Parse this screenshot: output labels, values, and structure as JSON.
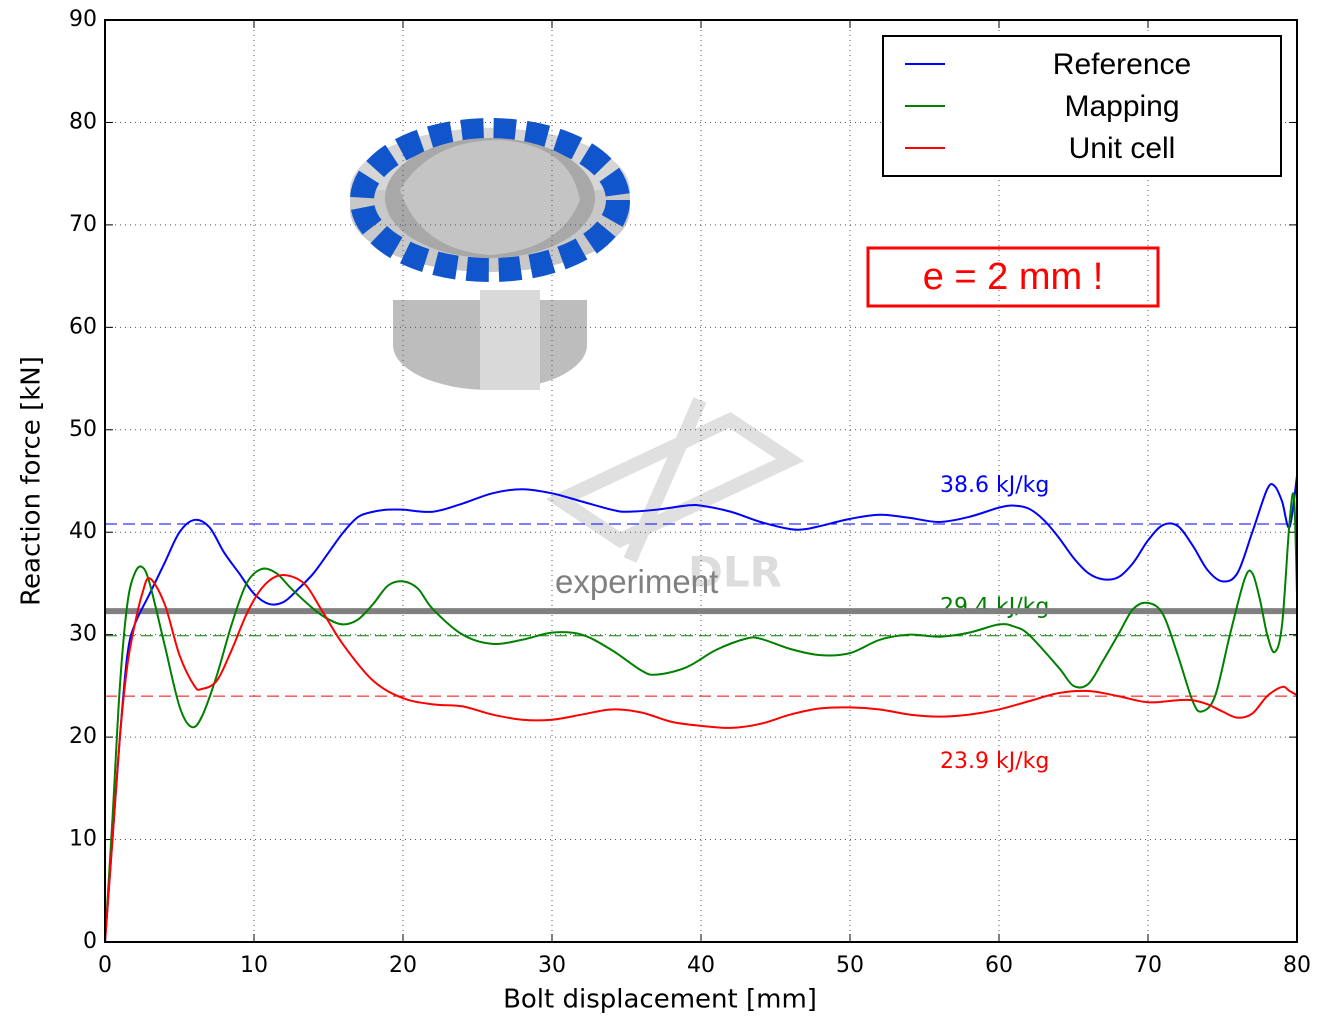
{
  "chart_data": {
    "type": "line",
    "xlabel": "Bolt displacement [mm]",
    "ylabel": "Reaction force [kN]",
    "xlim": [
      0,
      80
    ],
    "ylim": [
      0,
      90
    ],
    "xticks": [
      0,
      10,
      20,
      30,
      40,
      50,
      60,
      70,
      80
    ],
    "yticks": [
      0,
      10,
      20,
      30,
      40,
      50,
      60,
      70,
      80,
      90
    ],
    "grid": true,
    "legend": "upper right",
    "series": [
      {
        "name": "Reference",
        "color": "#0000ff",
        "x": [
          0,
          0.5,
          1,
          1.5,
          2,
          3,
          4,
          5,
          6,
          7,
          8,
          9,
          10,
          11,
          12,
          13,
          14,
          15,
          16,
          17,
          18,
          19,
          20,
          22,
          24,
          26,
          28,
          30,
          32,
          34,
          35,
          37,
          39,
          40,
          42,
          44,
          46,
          47,
          48,
          50,
          52,
          54,
          56,
          58,
          60,
          61,
          62,
          63,
          64,
          65,
          66,
          67,
          68,
          69,
          70,
          71,
          72,
          73,
          74,
          75,
          76,
          77,
          78,
          78.5,
          79,
          79.5,
          80
        ],
        "values": [
          0,
          10,
          20,
          28,
          31,
          34,
          37,
          40,
          41.2,
          40.5,
          38,
          36,
          34,
          33,
          33.2,
          34.5,
          36,
          38,
          40,
          41.5,
          42,
          42.2,
          42.2,
          42,
          42.8,
          43.8,
          44.2,
          43.8,
          43,
          42.2,
          42,
          42.2,
          42.6,
          42.6,
          42,
          41,
          40.3,
          40.3,
          40.6,
          41.3,
          41.7,
          41.4,
          41,
          41.5,
          42.4,
          42.6,
          42.3,
          41.2,
          39.5,
          37.5,
          36,
          35.4,
          35.6,
          37,
          39.2,
          40.7,
          40.6,
          38.7,
          36.3,
          35.2,
          36,
          40,
          44.2,
          44.5,
          43,
          40.5,
          45.5
        ]
      },
      {
        "name": "Mapping",
        "color": "#008000",
        "x": [
          0,
          0.5,
          1,
          1.5,
          2,
          2.5,
          3,
          4,
          5,
          5.8,
          6.5,
          7.5,
          8.5,
          9.5,
          10.5,
          11.5,
          12.5,
          14,
          15,
          16,
          17,
          18,
          19,
          20,
          21,
          22,
          24,
          26,
          28,
          30,
          32,
          34,
          36,
          37,
          39,
          41,
          43,
          44,
          46,
          48,
          50,
          52,
          54,
          56,
          58,
          60,
          61,
          62,
          64,
          65,
          66,
          67,
          68,
          69,
          70,
          71,
          72,
          73,
          73.6,
          74.5,
          75.5,
          76.5,
          77,
          77.5,
          78,
          78.5,
          79,
          79.5,
          79.8,
          80
        ],
        "values": [
          0,
          12,
          25,
          33,
          36,
          36.6,
          35,
          29,
          23,
          21,
          22,
          26,
          31,
          35,
          36.4,
          36,
          34.5,
          32.5,
          31.5,
          31,
          31.5,
          33,
          34.8,
          35.2,
          34.5,
          32.5,
          30,
          29.1,
          29.5,
          30.2,
          30,
          28.5,
          26.5,
          26.1,
          26.8,
          28.5,
          29.6,
          29.6,
          28.6,
          28,
          28.2,
          29.5,
          30,
          29.8,
          30.2,
          31,
          30.8,
          30,
          26.8,
          25,
          25.2,
          27.5,
          30,
          32.5,
          33.1,
          32,
          28,
          23.5,
          22.5,
          24,
          30,
          35.5,
          36,
          33.5,
          30,
          28.3,
          31,
          41,
          43.4,
          34
        ]
      },
      {
        "name": "Unit cell",
        "color": "#ff0000",
        "x": [
          0,
          0.5,
          1,
          1.5,
          2,
          2.5,
          3,
          4,
          5,
          6,
          6.5,
          7.5,
          8.5,
          9.5,
          10.5,
          11.5,
          12.5,
          13.5,
          14.5,
          16,
          18,
          20,
          22,
          24,
          26,
          28,
          30,
          32,
          34,
          36,
          38,
          40,
          42,
          44,
          46,
          48,
          50,
          52,
          54,
          56,
          58,
          60,
          62,
          64,
          66,
          68,
          70,
          72,
          73,
          74,
          75,
          76,
          77,
          78,
          79,
          79.5,
          80
        ],
        "values": [
          0,
          10,
          20,
          27,
          31,
          34,
          35.5,
          33,
          28,
          25,
          24.7,
          25.5,
          28.5,
          32,
          34.5,
          35.7,
          35.7,
          34.8,
          32.5,
          29,
          25.5,
          23.8,
          23.2,
          23,
          22.2,
          21.7,
          21.7,
          22.2,
          22.7,
          22.4,
          21.5,
          21.1,
          20.9,
          21.3,
          22.2,
          22.8,
          22.9,
          22.7,
          22.2,
          22,
          22.2,
          22.7,
          23.5,
          24.3,
          24.5,
          24,
          23.4,
          23.6,
          23.6,
          23.2,
          22.5,
          21.9,
          22.3,
          24,
          24.9,
          24.5,
          24.1
        ]
      }
    ],
    "reference_lines": [
      {
        "value": 40.8,
        "color": "#0000ff",
        "label": "38.6 kJ/kg"
      },
      {
        "value": 29.9,
        "color": "#008000",
        "label": "29.4 kJ/kg"
      },
      {
        "value": 24.0,
        "color": "#ff0000",
        "label": "23.9 kJ/kg"
      }
    ],
    "experiment": {
      "value": 32.3,
      "color": "#808080",
      "label": "experiment"
    },
    "annotation": "e = 2 mm !",
    "watermark": "DLR"
  }
}
